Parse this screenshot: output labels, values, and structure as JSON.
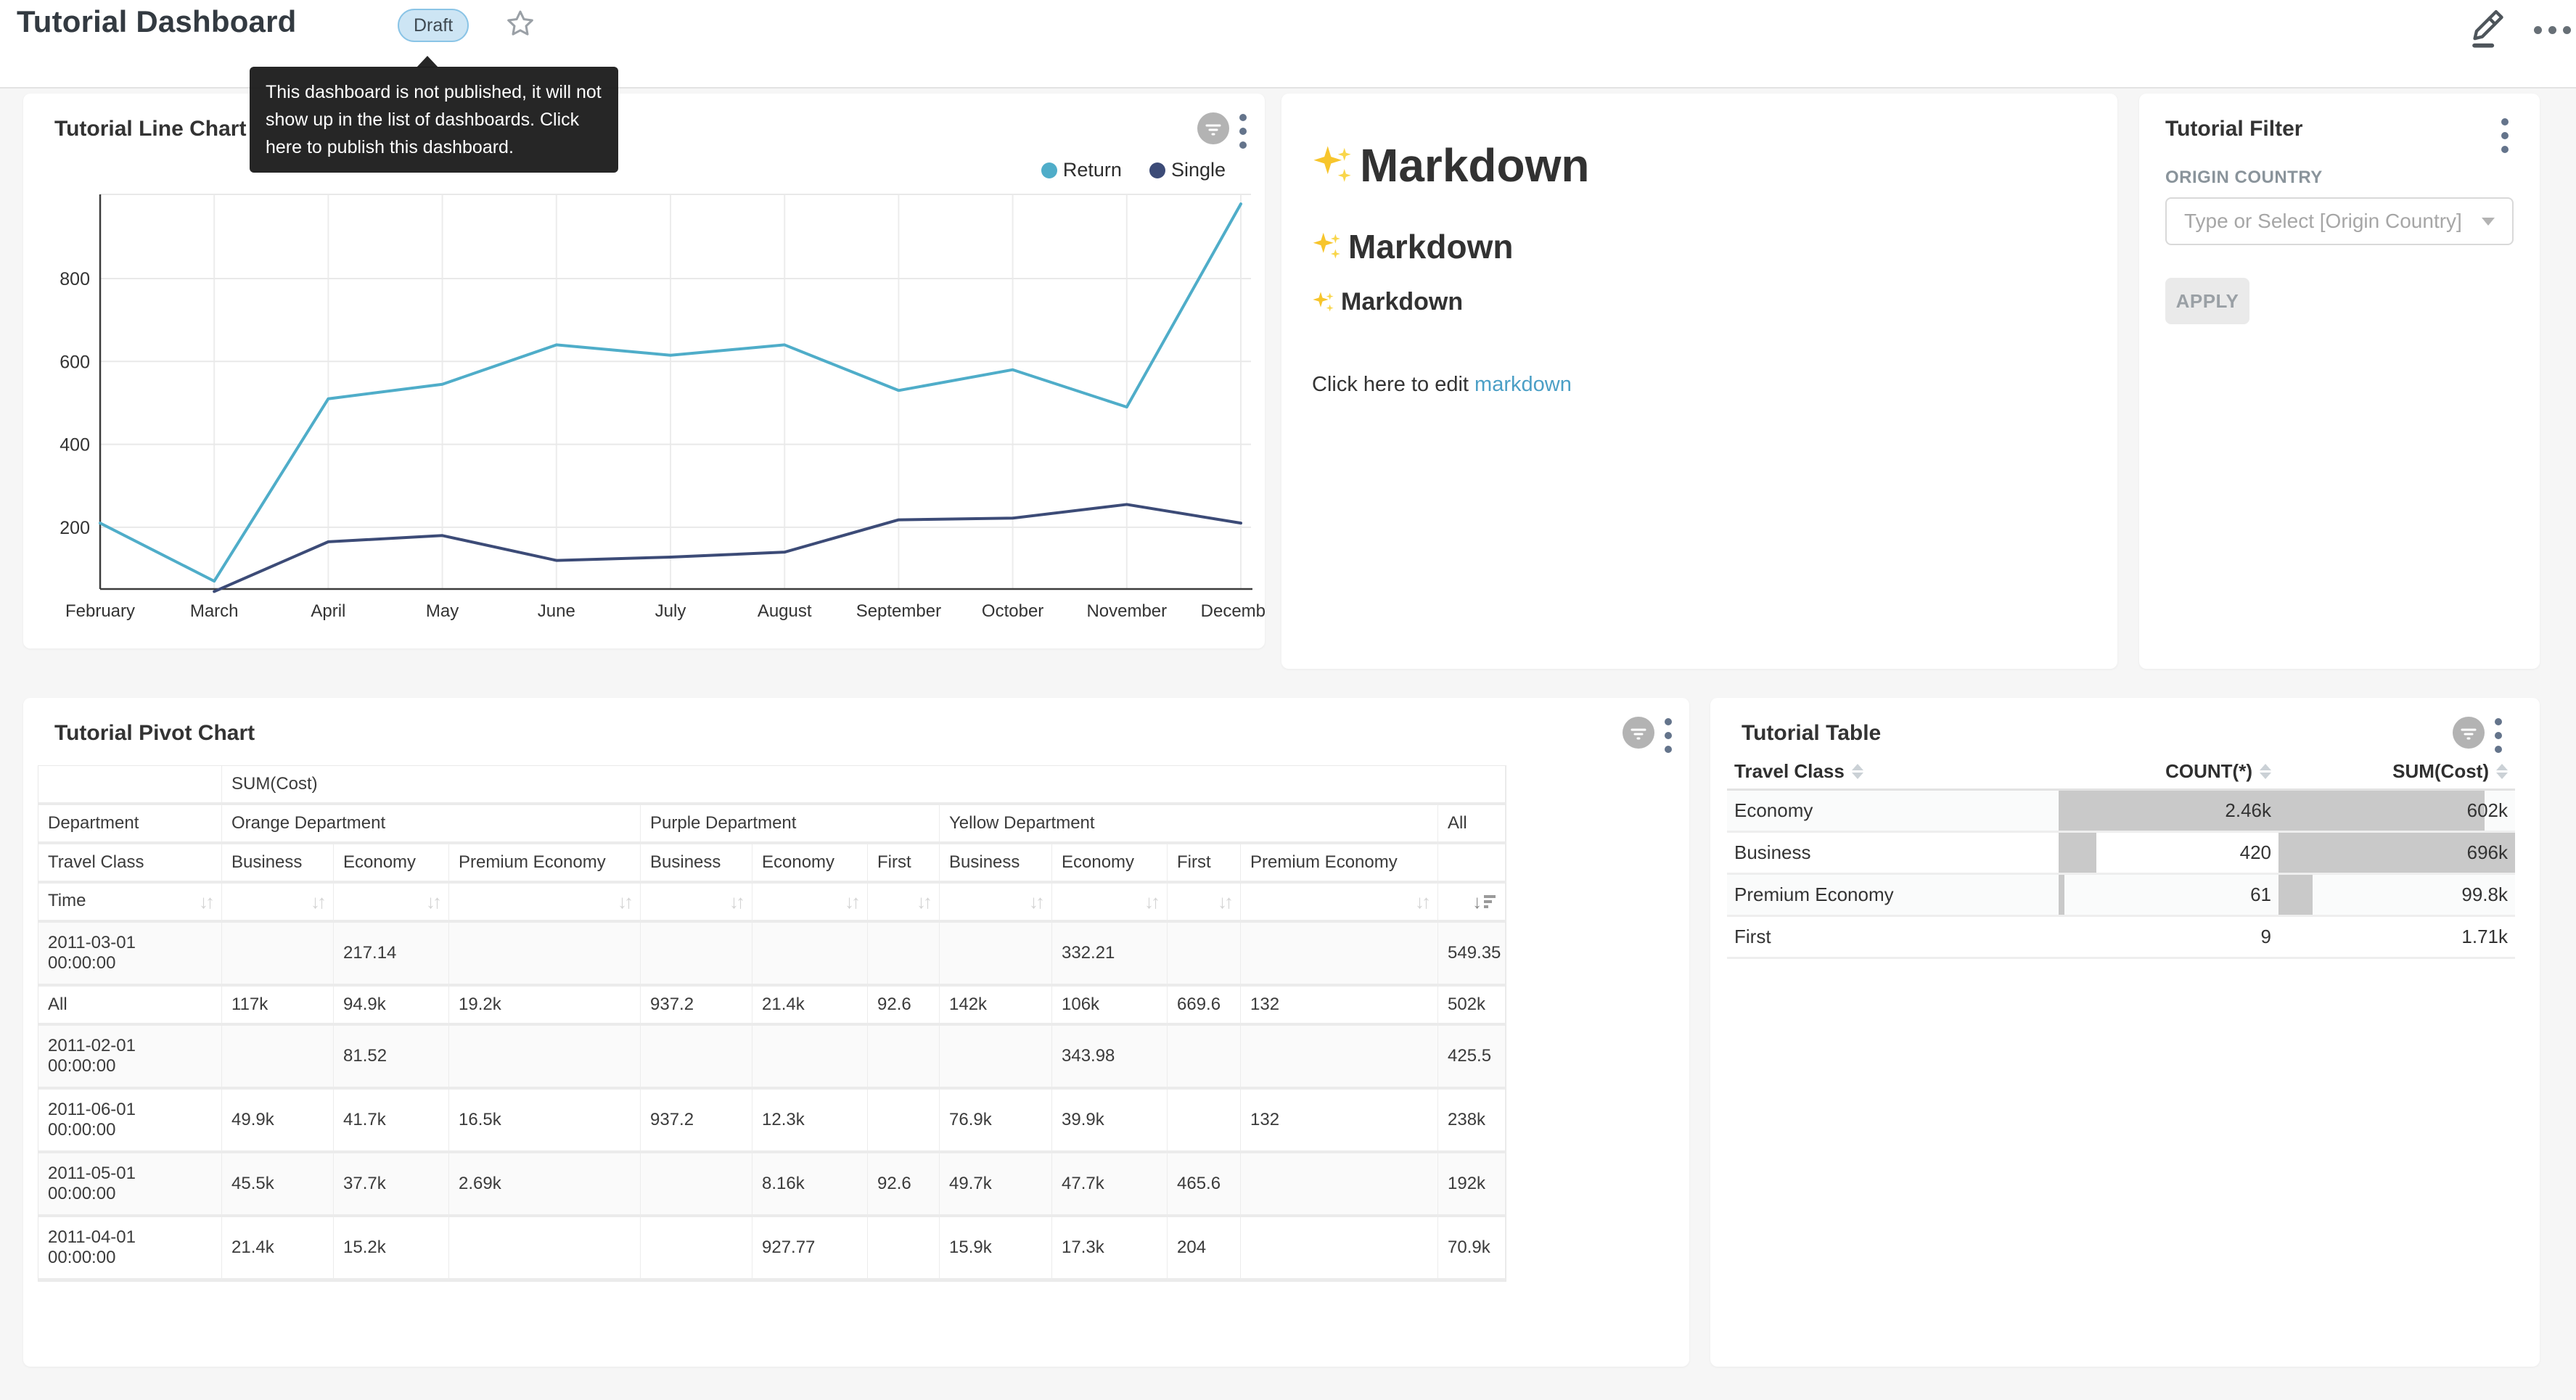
{
  "page": {
    "background": "#f6f6f6"
  },
  "header": {
    "title": "Tutorial Dashboard",
    "draft_badge": "Draft",
    "tooltip": "This dashboard is not published, it will not show up in the list of dashboards. Click here to publish this dashboard."
  },
  "line_chart_panel": {
    "title": "Tutorial Line Chart"
  },
  "chart_data": {
    "type": "line",
    "title": "Tutorial Line Chart",
    "categories": [
      "February",
      "March",
      "April",
      "May",
      "June",
      "July",
      "August",
      "September",
      "October",
      "November",
      "December"
    ],
    "series": [
      {
        "name": "Return",
        "color": "#4fadc9",
        "values": [
          210,
          70,
          510,
          545,
          640,
          615,
          640,
          530,
          580,
          490,
          980
        ]
      },
      {
        "name": "Single",
        "color": "#3c4b77",
        "values": [
          null,
          45,
          165,
          180,
          120,
          128,
          140,
          218,
          222,
          255,
          210
        ]
      }
    ],
    "y_ticks": [
      200,
      400,
      600,
      800
    ],
    "ylim": [
      51,
      1003
    ],
    "grid": true,
    "legend_position": "top-right"
  },
  "markdown_panel": {
    "sparkle_char": "✨",
    "h1": "Markdown",
    "h2": "Markdown",
    "h3": "Markdown",
    "paragraph_prefix": "Click here to edit ",
    "link_text": "markdown"
  },
  "filter_panel": {
    "title": "Tutorial Filter",
    "field_label": "ORIGIN COUNTRY",
    "select_placeholder": "Type or Select [Origin Country]",
    "apply_label": "APPLY"
  },
  "pivot_panel": {
    "title": "Tutorial Pivot Chart",
    "metric_header": "SUM(Cost)",
    "department_row_label": "Department",
    "travel_class_row_label": "Travel Class",
    "time_row_label": "Time",
    "departments": [
      {
        "name": "Orange Department",
        "classes": [
          "Business",
          "Economy",
          "Premium Economy"
        ]
      },
      {
        "name": "Purple Department",
        "classes": [
          "Business",
          "Economy",
          "First"
        ]
      },
      {
        "name": "Yellow Department",
        "classes": [
          "Business",
          "Economy",
          "First",
          "Premium Economy"
        ]
      },
      {
        "name": "All",
        "classes": [
          ""
        ]
      }
    ],
    "sorted_column": "All",
    "sort_direction": "desc",
    "rows": [
      {
        "time": "2011-03-01 00:00:00",
        "values": [
          "",
          "217.14",
          "",
          "",
          "",
          "",
          "",
          "332.21",
          "",
          "",
          "549.35"
        ]
      },
      {
        "time": "All",
        "values": [
          "117k",
          "94.9k",
          "19.2k",
          "937.2",
          "21.4k",
          "92.6",
          "142k",
          "106k",
          "669.6",
          "132",
          "502k"
        ]
      },
      {
        "time": "2011-02-01 00:00:00",
        "values": [
          "",
          "81.52",
          "",
          "",
          "",
          "",
          "",
          "343.98",
          "",
          "",
          "425.5"
        ]
      },
      {
        "time": "2011-06-01 00:00:00",
        "values": [
          "49.9k",
          "41.7k",
          "16.5k",
          "937.2",
          "12.3k",
          "",
          "76.9k",
          "39.9k",
          "",
          "132",
          "238k"
        ]
      },
      {
        "time": "2011-05-01 00:00:00",
        "values": [
          "45.5k",
          "37.7k",
          "2.69k",
          "",
          "8.16k",
          "92.6",
          "49.7k",
          "47.7k",
          "465.6",
          "",
          "192k"
        ]
      },
      {
        "time": "2011-04-01 00:00:00",
        "values": [
          "21.4k",
          "15.2k",
          "",
          "",
          "927.77",
          "",
          "15.9k",
          "17.3k",
          "204",
          "",
          "70.9k"
        ]
      }
    ]
  },
  "table_panel": {
    "title": "Tutorial Table",
    "columns": [
      "Travel Class",
      "COUNT(*)",
      "SUM(Cost)"
    ],
    "rows": [
      {
        "travel_class": "Economy",
        "count": "2.46k",
        "count_pct": 100,
        "sum": "602k",
        "sum_pct": 87
      },
      {
        "travel_class": "Business",
        "count": "420",
        "count_pct": 17,
        "sum": "696k",
        "sum_pct": 100
      },
      {
        "travel_class": "Premium Economy",
        "count": "61",
        "count_pct": 2.5,
        "sum": "99.8k",
        "sum_pct": 14.3
      },
      {
        "travel_class": "First",
        "count": "9",
        "count_pct": 0.5,
        "sum": "1.71k",
        "sum_pct": 0.3
      }
    ]
  }
}
